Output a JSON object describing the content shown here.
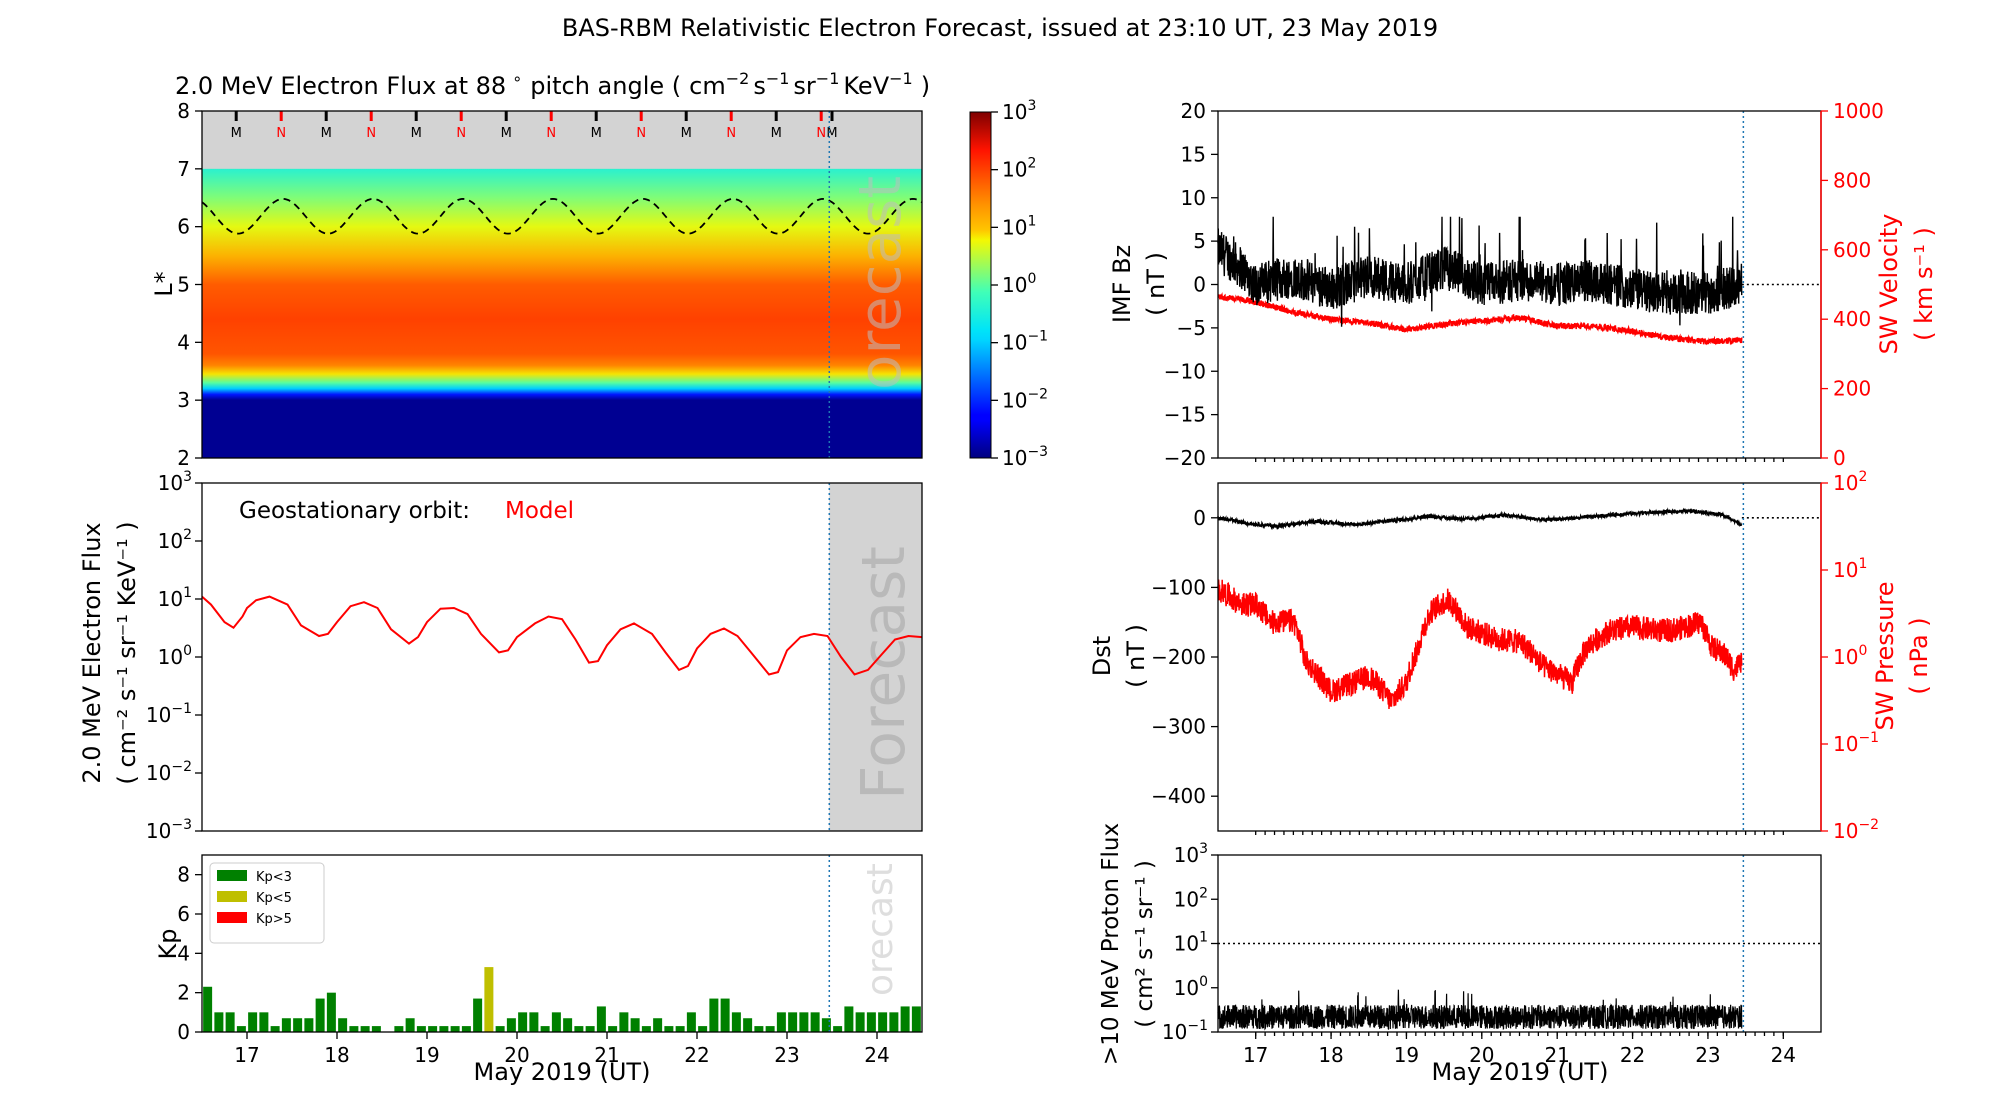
{
  "figure": {
    "suptitle": "BAS-RBM Relativistic Electron Forecast, issued at 23:10 UT, 23 May 2019",
    "xlabel": "May 2019 (UT)",
    "forecast_label": "Forecast",
    "forecast_label_short": "orecast",
    "colors": {
      "model": "#ff0000",
      "sw": "#ff0000",
      "kp_green": "#008000",
      "kp_yellow": "#bfbf00",
      "kp_red": "#ff0000",
      "forecast_line": "#1f77b4",
      "forecast_shade": "#d3d3d3"
    }
  },
  "chart_data": [
    {
      "id": "lstar",
      "type": "heatmap",
      "title_main": "2.0 MeV Electron Flux at 88",
      "title_deg": "∘",
      "title_pitch": "pitch angle (",
      "title_units": [
        "cm",
        "−2",
        "s",
        "−1",
        "sr",
        "−1",
        "KeV",
        "−1",
        ")"
      ],
      "ylabel": "L*",
      "xlim": [
        16.5,
        24.5
      ],
      "ylim": [
        2,
        8
      ],
      "yticks": [
        "2",
        "3",
        "4",
        "5",
        "6",
        "7",
        "8"
      ],
      "forecast_start": 23.47,
      "colorbar": {
        "scale": "log",
        "range": [
          -3,
          3
        ],
        "ticks": [
          {
            "base": "10",
            "exp": "3"
          },
          {
            "base": "10",
            "exp": "2"
          },
          {
            "base": "10",
            "exp": "1"
          },
          {
            "base": "10",
            "exp": "0"
          },
          {
            "base": "10",
            "exp": "−1"
          },
          {
            "base": "10",
            "exp": "−2"
          },
          {
            "base": "10",
            "exp": "−3"
          }
        ]
      },
      "log10_flux_by_L": [
        {
          "L": 2.0,
          "v": -2.9
        },
        {
          "L": 3.0,
          "v": -2.9
        },
        {
          "L": 3.1,
          "v": -2.2
        },
        {
          "L": 3.2,
          "v": -1.0
        },
        {
          "L": 3.3,
          "v": 0.0
        },
        {
          "L": 3.45,
          "v": 0.9
        },
        {
          "L": 3.6,
          "v": 1.5
        },
        {
          "L": 3.8,
          "v": 1.85
        },
        {
          "L": 4.4,
          "v": 2.0
        },
        {
          "L": 5.0,
          "v": 1.8
        },
        {
          "L": 5.5,
          "v": 1.2
        },
        {
          "L": 6.0,
          "v": 0.7
        },
        {
          "L": 6.5,
          "v": 0.2
        },
        {
          "L": 7.0,
          "v": -0.4
        }
      ],
      "no_data_above_L": 7.0,
      "mlt_markers": [
        "M",
        "N",
        "M",
        "N",
        "M",
        "N",
        "M",
        "N",
        "M",
        "N",
        "M",
        "N",
        "M",
        "N",
        "M"
      ],
      "mlt_marker_days": [
        16.88,
        17.38,
        17.88,
        18.38,
        18.88,
        19.38,
        19.88,
        20.38,
        20.88,
        21.38,
        21.88,
        22.38,
        22.88,
        23.38,
        23.5
      ],
      "geo_lstar": {
        "mean": 6.18,
        "amplitude": 0.3,
        "period_days": 1.0,
        "phase_day": 16.9
      }
    },
    {
      "id": "geo",
      "type": "line",
      "label": "Geostationary orbit:",
      "series_name": "Model",
      "ylabel_lines": [
        "2.0 MeV Electron Flux",
        "( cm⁻² s⁻¹ sr⁻¹ KeV⁻¹ )"
      ],
      "yscale": "log",
      "ylim_exp": [
        -3,
        3
      ],
      "yticks": [
        {
          "base": "10",
          "exp": "3"
        },
        {
          "base": "10",
          "exp": "2"
        },
        {
          "base": "10",
          "exp": "1"
        },
        {
          "base": "10",
          "exp": "0"
        },
        {
          "base": "10",
          "exp": "−1"
        },
        {
          "base": "10",
          "exp": "−2"
        },
        {
          "base": "10",
          "exp": "−3"
        }
      ],
      "x": [
        16.5,
        16.6,
        16.75,
        16.85,
        16.95,
        17.0,
        17.1,
        17.25,
        17.45,
        17.6,
        17.8,
        17.9,
        18.0,
        18.15,
        18.3,
        18.45,
        18.6,
        18.8,
        18.9,
        19.0,
        19.15,
        19.3,
        19.45,
        19.6,
        19.8,
        19.9,
        20.0,
        20.2,
        20.35,
        20.5,
        20.65,
        20.8,
        20.9,
        21.0,
        21.15,
        21.3,
        21.5,
        21.65,
        21.8,
        21.9,
        22.0,
        22.15,
        22.3,
        22.45,
        22.6,
        22.8,
        22.9,
        23.0,
        23.15,
        23.3,
        23.45,
        23.6,
        23.75,
        23.9,
        24.05,
        24.2,
        24.35,
        24.5
      ],
      "y": [
        11,
        8,
        4,
        3.2,
        5,
        7,
        9.5,
        11,
        8,
        3.5,
        2.3,
        2.5,
        4,
        7.5,
        8.8,
        7,
        3,
        1.7,
        2.2,
        4,
        6.8,
        7,
        5.5,
        2.5,
        1.2,
        1.3,
        2.2,
        3.8,
        5,
        4.5,
        2,
        0.8,
        0.85,
        1.6,
        3,
        3.8,
        2.5,
        1.2,
        0.6,
        0.7,
        1.4,
        2.5,
        3.1,
        2.3,
        1.2,
        0.5,
        0.55,
        1.3,
        2.2,
        2.5,
        2.3,
        1.0,
        0.5,
        0.6,
        1.1,
        2.0,
        2.3,
        2.2
      ]
    },
    {
      "id": "kp",
      "type": "bar",
      "ylabel": "Kp",
      "ylim": [
        0,
        9
      ],
      "yticks": [
        "0",
        "2",
        "4",
        "6",
        "8"
      ],
      "xticks": [
        "17",
        "18",
        "19",
        "20",
        "21",
        "22",
        "23",
        "24"
      ],
      "legend": {
        "position": "upper-left",
        "entries": [
          "Kp<3",
          "Kp<5",
          "Kp>5"
        ]
      },
      "bar_width_days": 0.125,
      "start_day": 16.5,
      "values": [
        2.3,
        1,
        1,
        0.3,
        1,
        1,
        0.3,
        0.7,
        0.7,
        0.7,
        1.7,
        2,
        0.7,
        0.3,
        0.3,
        0.3,
        0,
        0.3,
        0.7,
        0.3,
        0.3,
        0.3,
        0.3,
        0.3,
        1.7,
        3.3,
        0.3,
        0.7,
        1,
        1,
        0.3,
        1,
        0.7,
        0.3,
        0.3,
        1.3,
        0.3,
        1,
        0.7,
        0.3,
        0.7,
        0.3,
        0.3,
        1,
        0.3,
        1.7,
        1.7,
        1,
        0.7,
        0.3,
        0.3,
        1,
        1,
        1,
        1,
        0.7,
        0.3,
        1.3,
        1,
        1,
        1,
        1,
        1.3,
        1.3,
        1.3,
        1.3,
        1.3,
        1.3,
        1.3,
        1.3,
        1.3,
        1.3,
        1.3,
        1.3
      ]
    },
    {
      "id": "imf",
      "type": "line",
      "ylabel_left": [
        "IMF Bz",
        "( nT )"
      ],
      "ylabel_right": [
        "SW Velocity",
        "( km s⁻¹ )"
      ],
      "ylim": [
        -20,
        20
      ],
      "yticks": [
        "20",
        "15",
        "10",
        "5",
        "0",
        "−5",
        "−10",
        "−15",
        "−20"
      ],
      "ylim_right": [
        0,
        1000
      ],
      "yticks_right": [
        "1000",
        "800",
        "600",
        "400",
        "200",
        "0"
      ],
      "reference_y": 0,
      "data_end": 23.45,
      "bz_mean": [
        {
          "x": 16.5,
          "y": 4
        },
        {
          "x": 16.8,
          "y": 2
        },
        {
          "x": 17.0,
          "y": 0
        },
        {
          "x": 17.5,
          "y": 1
        },
        {
          "x": 18.0,
          "y": -0.5
        },
        {
          "x": 18.5,
          "y": 1
        },
        {
          "x": 19.0,
          "y": 0
        },
        {
          "x": 19.5,
          "y": 2
        },
        {
          "x": 20.0,
          "y": 0
        },
        {
          "x": 20.5,
          "y": 0.5
        },
        {
          "x": 21.0,
          "y": 0
        },
        {
          "x": 21.5,
          "y": 0.5
        },
        {
          "x": 22.0,
          "y": -0.5
        },
        {
          "x": 22.5,
          "y": -1
        },
        {
          "x": 23.0,
          "y": -1
        },
        {
          "x": 23.45,
          "y": 0
        }
      ],
      "velocity": [
        {
          "x": 16.5,
          "y": 465
        },
        {
          "x": 17.0,
          "y": 450
        },
        {
          "x": 17.5,
          "y": 420
        },
        {
          "x": 18.0,
          "y": 400
        },
        {
          "x": 18.5,
          "y": 390
        },
        {
          "x": 19.0,
          "y": 370
        },
        {
          "x": 19.5,
          "y": 385
        },
        {
          "x": 20.0,
          "y": 395
        },
        {
          "x": 20.5,
          "y": 405
        },
        {
          "x": 21.0,
          "y": 380
        },
        {
          "x": 21.5,
          "y": 380
        },
        {
          "x": 22.0,
          "y": 365
        },
        {
          "x": 22.5,
          "y": 345
        },
        {
          "x": 23.0,
          "y": 335
        },
        {
          "x": 23.45,
          "y": 340
        }
      ]
    },
    {
      "id": "dst",
      "type": "line",
      "ylabel_left": [
        "Dst",
        "( nT )"
      ],
      "ylabel_right": [
        "SW Pressure",
        "( nPa )"
      ],
      "ylim": [
        -450,
        50
      ],
      "yticks": [
        "0",
        "−100",
        "−200",
        "−300",
        "−400"
      ],
      "yscale_right": "log",
      "ylim_right_exp": [
        -2,
        2
      ],
      "yticks_right": [
        {
          "base": "10",
          "exp": "2"
        },
        {
          "base": "10",
          "exp": "1"
        },
        {
          "base": "10",
          "exp": "0"
        },
        {
          "base": "10",
          "exp": "−1"
        },
        {
          "base": "10",
          "exp": "−2"
        }
      ],
      "reference_y": 0,
      "data_end": 23.45,
      "dst": [
        {
          "x": 16.5,
          "y": 0
        },
        {
          "x": 16.9,
          "y": -8
        },
        {
          "x": 17.3,
          "y": -12
        },
        {
          "x": 17.8,
          "y": -5
        },
        {
          "x": 18.3,
          "y": -10
        },
        {
          "x": 18.8,
          "y": -4
        },
        {
          "x": 19.3,
          "y": 2
        },
        {
          "x": 19.8,
          "y": -2
        },
        {
          "x": 20.3,
          "y": 4
        },
        {
          "x": 20.8,
          "y": -3
        },
        {
          "x": 21.3,
          "y": 0
        },
        {
          "x": 21.8,
          "y": 5
        },
        {
          "x": 22.3,
          "y": 8
        },
        {
          "x": 22.8,
          "y": 10
        },
        {
          "x": 23.2,
          "y": 4
        },
        {
          "x": 23.45,
          "y": -10
        }
      ],
      "pressure": [
        {
          "x": 16.5,
          "y": 6
        },
        {
          "x": 16.8,
          "y": 4
        },
        {
          "x": 17.0,
          "y": 4
        },
        {
          "x": 17.2,
          "y": 2.5
        },
        {
          "x": 17.5,
          "y": 2.6
        },
        {
          "x": 17.65,
          "y": 0.9
        },
        {
          "x": 17.9,
          "y": 0.5
        },
        {
          "x": 18.0,
          "y": 0.4
        },
        {
          "x": 18.3,
          "y": 0.5
        },
        {
          "x": 18.5,
          "y": 0.6
        },
        {
          "x": 18.8,
          "y": 0.3
        },
        {
          "x": 19.0,
          "y": 0.5
        },
        {
          "x": 19.15,
          "y": 1.2
        },
        {
          "x": 19.35,
          "y": 3.5
        },
        {
          "x": 19.55,
          "y": 4.5
        },
        {
          "x": 19.8,
          "y": 2.2
        },
        {
          "x": 20.2,
          "y": 1.6
        },
        {
          "x": 20.5,
          "y": 1.5
        },
        {
          "x": 20.8,
          "y": 0.8
        },
        {
          "x": 21.05,
          "y": 0.6
        },
        {
          "x": 21.2,
          "y": 0.5
        },
        {
          "x": 21.4,
          "y": 1.3
        },
        {
          "x": 21.7,
          "y": 2.0
        },
        {
          "x": 22.0,
          "y": 2.2
        },
        {
          "x": 22.4,
          "y": 2.0
        },
        {
          "x": 22.6,
          "y": 2.1
        },
        {
          "x": 22.9,
          "y": 2.5
        },
        {
          "x": 23.05,
          "y": 1.3
        },
        {
          "x": 23.2,
          "y": 1.1
        },
        {
          "x": 23.35,
          "y": 0.7
        },
        {
          "x": 23.45,
          "y": 0.9
        }
      ]
    },
    {
      "id": "proton",
      "type": "line",
      "ylabel_left": [
        ">10 MeV Proton Flux",
        "( cm² s⁻¹ sr⁻¹ )"
      ],
      "yscale": "log",
      "ylim_exp": [
        -1,
        3
      ],
      "yticks": [
        {
          "base": "10",
          "exp": "3"
        },
        {
          "base": "10",
          "exp": "2"
        },
        {
          "base": "10",
          "exp": "1"
        },
        {
          "base": "10",
          "exp": "0"
        },
        {
          "base": "10",
          "exp": "−1"
        }
      ],
      "xticks": [
        "17",
        "18",
        "19",
        "20",
        "21",
        "22",
        "23",
        "24"
      ],
      "threshold": 10,
      "data_end": 23.45,
      "typical_flux": 0.22
    }
  ]
}
